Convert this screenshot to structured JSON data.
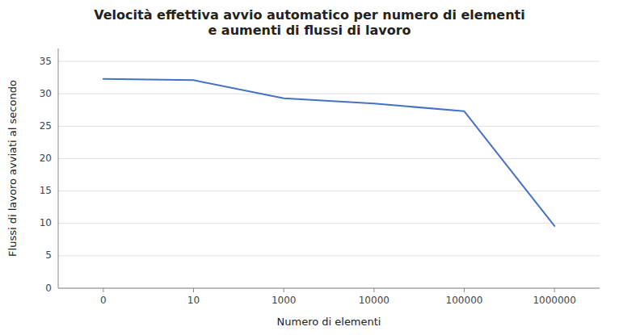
{
  "chart_data": {
    "type": "line",
    "title": "Velocità effettiva avvio automatico per numero di elementi\ne aumenti di flussi di lavoro",
    "x_label": "Numero di elementi",
    "y_label": "Flussi di lavoro avviati al secondo",
    "categories": [
      "0",
      "10",
      "1000",
      "10000",
      "100000",
      "1000000"
    ],
    "values": [
      32.3,
      32.1,
      29.3,
      28.5,
      27.3,
      9.6
    ],
    "color": "#4472C4",
    "ylim": [
      0,
      37
    ],
    "yticks": [
      0,
      5,
      10,
      15,
      20,
      25,
      30,
      35
    ],
    "grid": true
  }
}
